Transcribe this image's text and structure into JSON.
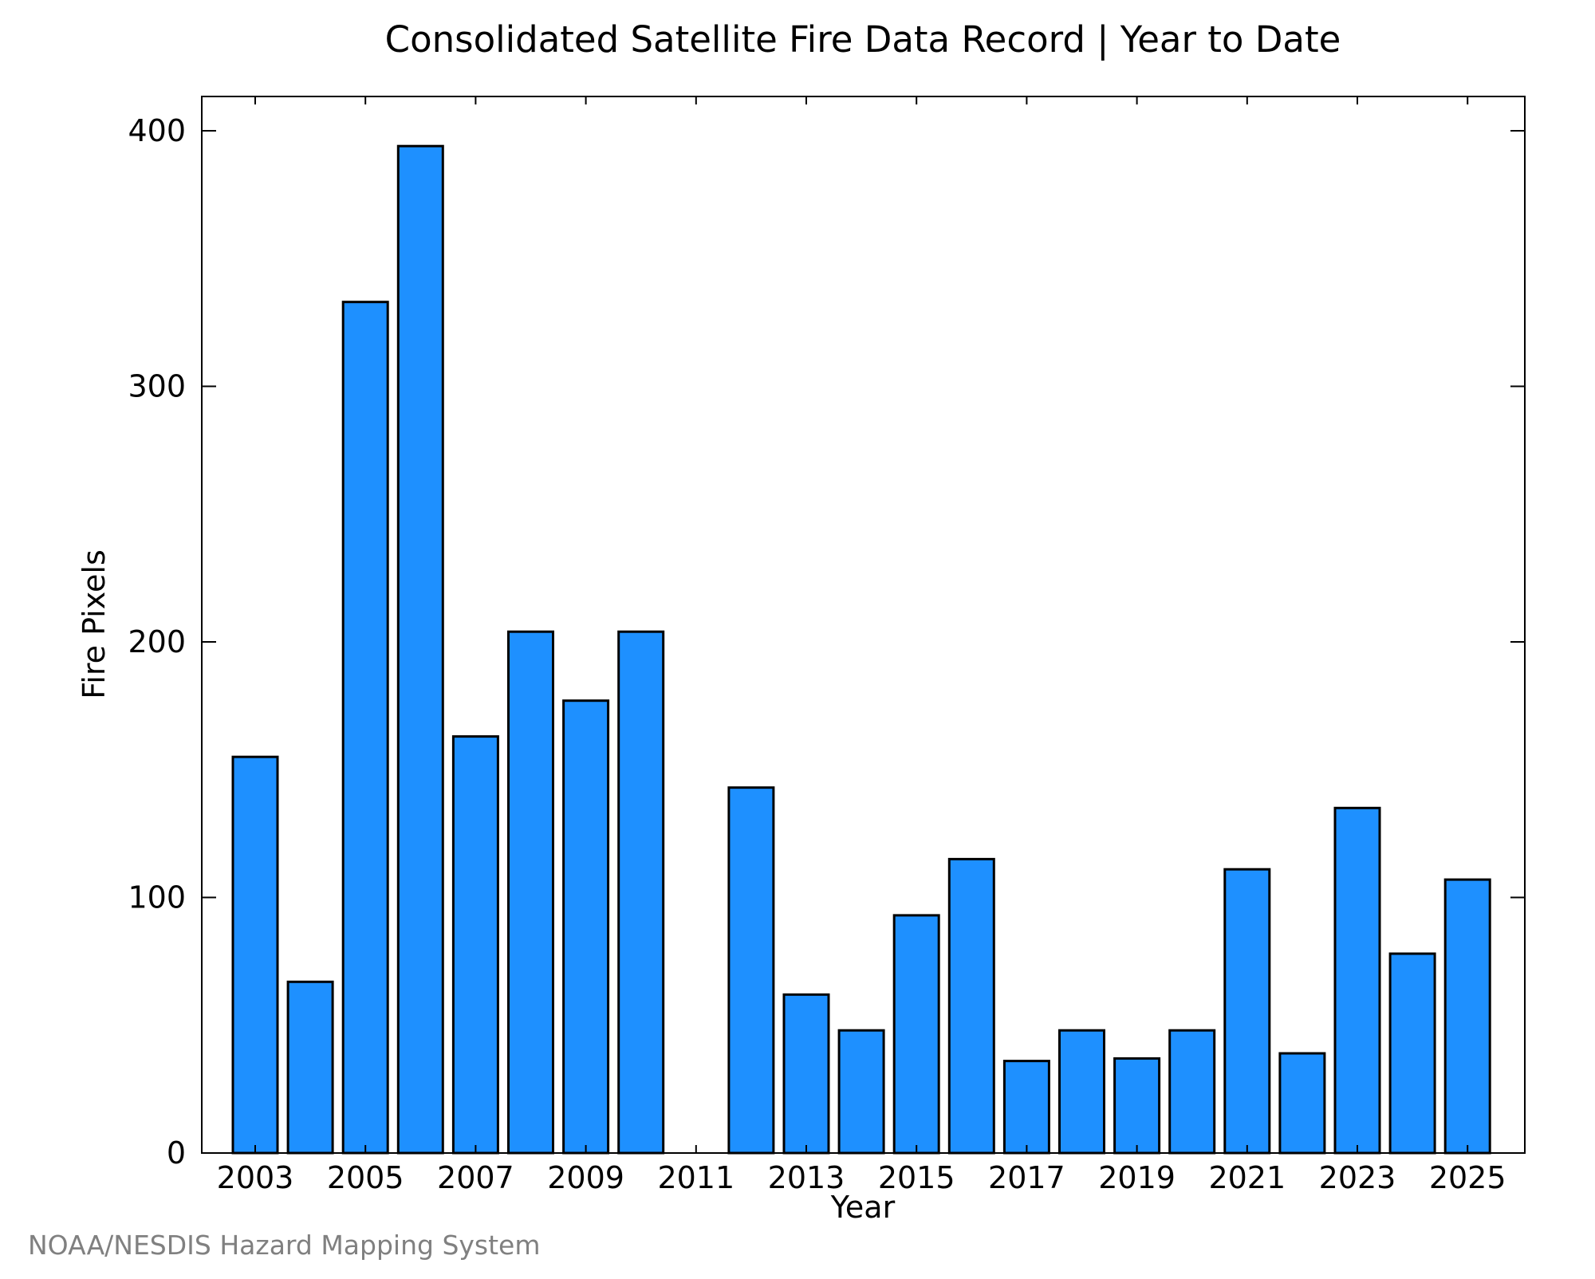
{
  "chart_data": {
    "type": "bar",
    "title": "Consolidated Satellite Fire Data Record | Year to Date",
    "xlabel": "Year",
    "ylabel": "Fire Pixels",
    "categories": [
      "2003",
      "2004",
      "2005",
      "2006",
      "2007",
      "2008",
      "2009",
      "2010",
      "2011",
      "2012",
      "2013",
      "2014",
      "2015",
      "2016",
      "2017",
      "2018",
      "2019",
      "2020",
      "2021",
      "2022",
      "2023",
      "2024",
      "2025"
    ],
    "values": [
      155,
      67,
      333,
      394,
      163,
      204,
      177,
      204,
      0,
      143,
      62,
      48,
      93,
      115,
      36,
      48,
      37,
      48,
      111,
      39,
      135,
      78,
      107
    ],
    "x_tick_labels": [
      "2003",
      "2005",
      "2007",
      "2009",
      "2011",
      "2013",
      "2015",
      "2017",
      "2019",
      "2021",
      "2023",
      "2025"
    ],
    "y_ticks": [
      0,
      100,
      200,
      300,
      400
    ],
    "ylim": [
      0,
      414
    ],
    "bar_color": "#1e90ff",
    "grid": false,
    "credit": "NOAA/NESDIS Hazard Mapping System"
  }
}
